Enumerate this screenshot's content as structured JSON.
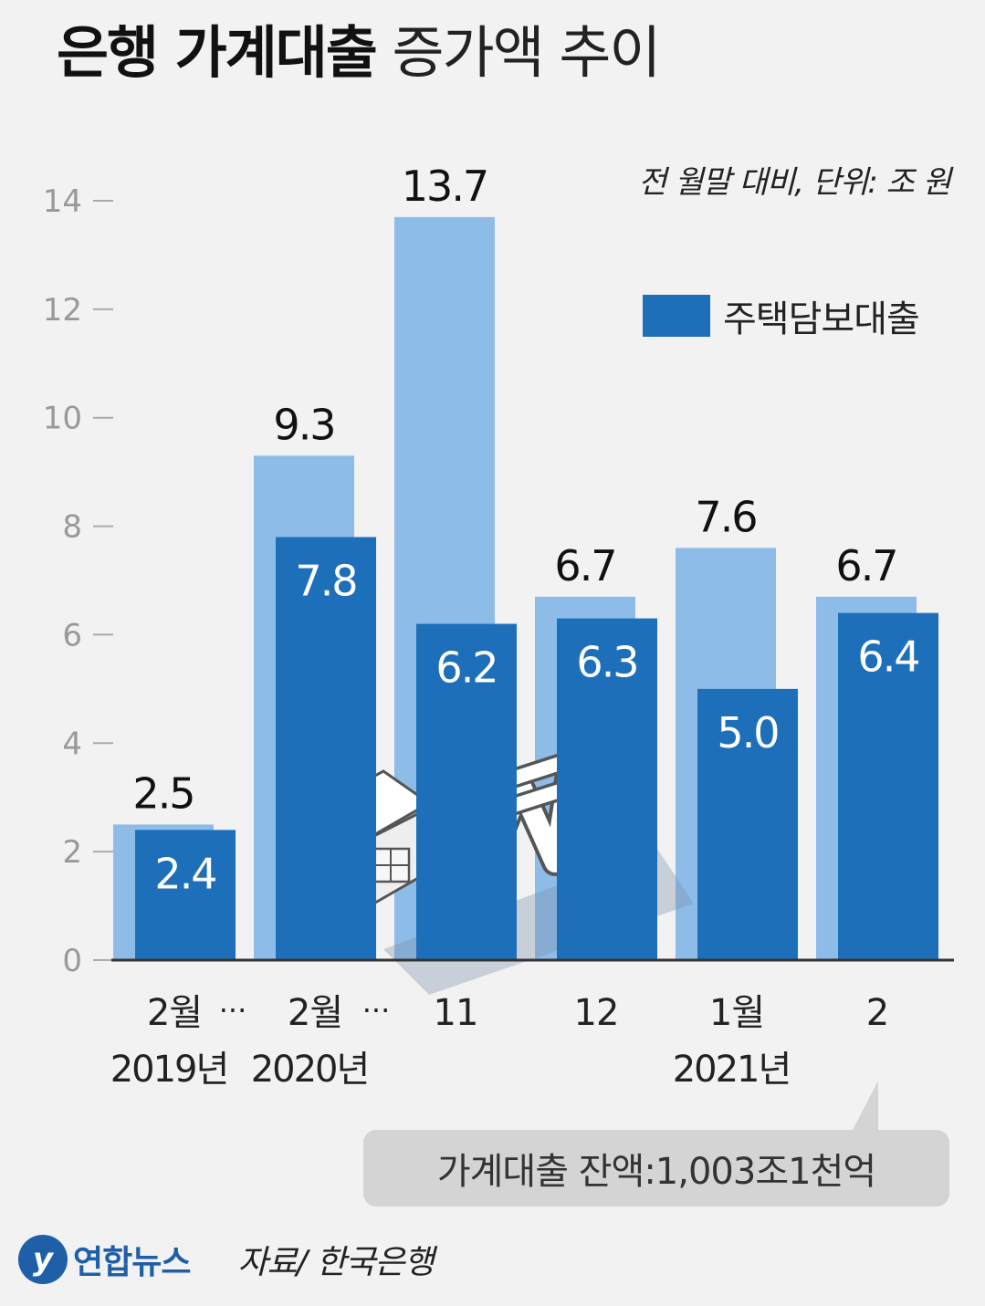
{
  "title": {
    "bold": "은행 가계대출",
    "light": "증가액 추이"
  },
  "unit_note": "전 월말 대비, 단위: 조 원",
  "legend": {
    "label": "주택담보대출",
    "color": "#1e6fba"
  },
  "balance_note": "가계대출 잔액:1,003조1천억",
  "footer": {
    "logo_text": "연합뉴스",
    "source": "자료/ 한국은행"
  },
  "chart_data": {
    "type": "bar",
    "categories": [
      "2월 2019년",
      "2월 2020년",
      "11",
      "12",
      "1월 2021년",
      "2"
    ],
    "x_tick_lines": [
      [
        "2월",
        "2019년"
      ],
      [
        "2월",
        "2020년"
      ],
      [
        "11",
        ""
      ],
      [
        "12",
        ""
      ],
      [
        "1월",
        "2021년"
      ],
      [
        "2",
        ""
      ]
    ],
    "break_marks": [
      "···",
      "···"
    ],
    "series": [
      {
        "name": "",
        "color": "#8dbce8",
        "values": [
          2.5,
          9.3,
          13.7,
          6.7,
          7.6,
          6.7
        ]
      },
      {
        "name": "주택담보대출",
        "color": "#1e6fba",
        "values": [
          2.4,
          7.8,
          6.2,
          6.3,
          5.0,
          6.4
        ]
      }
    ],
    "ylim": [
      0,
      14
    ],
    "yticks": [
      0,
      2,
      4,
      6,
      8,
      10,
      12,
      14
    ],
    "grid": false
  }
}
